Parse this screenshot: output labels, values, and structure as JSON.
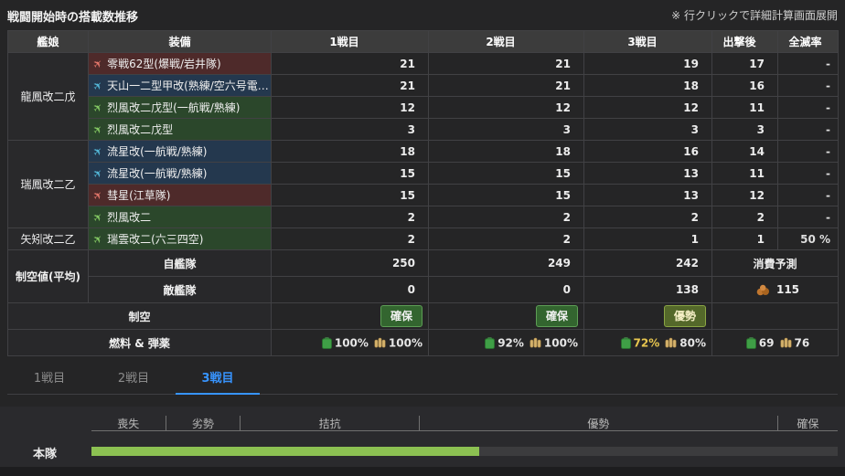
{
  "header": {
    "title": "戦闘開始時の搭載数推移",
    "note": "※ 行クリックで詳細計算画面展開"
  },
  "table": {
    "headers": {
      "ship": "艦娘",
      "equipment": "装備",
      "battle1": "1戦目",
      "battle2": "2戦目",
      "battle3": "3戦目",
      "after_sortie": "出撃後",
      "annihilation_rate": "全滅率"
    },
    "ships": [
      {
        "name": "龍鳳改二戊"
      },
      {
        "name": "瑞鳳改二乙"
      },
      {
        "name": "矢矧改二乙"
      }
    ],
    "rows": [
      {
        "equipment": "零戦62型(爆戦/岩井隊)",
        "type": "bomber",
        "b1": "21",
        "b2": "21",
        "b3": "19",
        "after": "17",
        "rate": "-"
      },
      {
        "equipment": "天山一二型甲改(熟練/空六号電…",
        "type": "attacker",
        "b1": "21",
        "b2": "21",
        "b3": "18",
        "after": "16",
        "rate": "-"
      },
      {
        "equipment": "烈風改二戊型(一航戦/熟練)",
        "type": "fighter",
        "b1": "12",
        "b2": "12",
        "b3": "12",
        "after": "11",
        "rate": "-"
      },
      {
        "equipment": "烈風改二戊型",
        "type": "fighter",
        "b1": "3",
        "b2": "3",
        "b3": "3",
        "after": "3",
        "rate": "-"
      },
      {
        "equipment": "流星改(一航戦/熟練)",
        "type": "attacker",
        "b1": "18",
        "b2": "18",
        "b3": "16",
        "after": "14",
        "rate": "-"
      },
      {
        "equipment": "流星改(一航戦/熟練)",
        "type": "attacker",
        "b1": "15",
        "b2": "15",
        "b3": "13",
        "after": "11",
        "rate": "-"
      },
      {
        "equipment": "彗星(江草隊)",
        "type": "bomber",
        "b1": "15",
        "b2": "15",
        "b3": "13",
        "after": "12",
        "rate": "-"
      },
      {
        "equipment": "烈風改二",
        "type": "fighter",
        "b1": "2",
        "b2": "2",
        "b3": "2",
        "after": "2",
        "rate": "-"
      },
      {
        "equipment": "瑞雲改二(六三四空)",
        "type": "fighter",
        "b1": "2",
        "b2": "2",
        "b3": "1",
        "after": "1",
        "rate": "50 %"
      }
    ],
    "summary": {
      "air_power_label": "制空値(平均)",
      "own_fleet": {
        "label": "自艦隊",
        "b1": "250",
        "b2": "249",
        "b3": "242",
        "note": "消費予測"
      },
      "enemy_fleet": {
        "label": "敵艦隊",
        "b1": "0",
        "b2": "0",
        "b3": "138",
        "bauxite": "115"
      },
      "air_state": {
        "label": "制空",
        "b1": "確保",
        "b2": "確保",
        "b3": "優勢"
      },
      "supply": {
        "label": "燃料 & 弾薬",
        "b1": {
          "fuel": "100%",
          "ammo": "100%"
        },
        "b2": {
          "fuel": "92%",
          "ammo": "100%"
        },
        "b3": {
          "fuel": "72%",
          "ammo": "80%"
        },
        "after": {
          "fuel": "69",
          "ammo": "76"
        }
      }
    }
  },
  "tabs": [
    {
      "label": "1戦目",
      "active": false
    },
    {
      "label": "2戦目",
      "active": false
    },
    {
      "label": "3戦目",
      "active": true
    }
  ],
  "gauge": {
    "fleet_label": "本隊",
    "labels": [
      "喪失",
      "劣勢",
      "拮抗",
      "優勢",
      "確保"
    ],
    "fill_percent": 52,
    "fill_color": "#8cc152"
  },
  "colors": {
    "accent_blue": "#3794ff",
    "bomber_row": "#4e2a2a",
    "attacker_row": "#24384e",
    "fighter_row": "#2b472b",
    "secure_badge": "#33652f",
    "superior_badge": "#54682a",
    "warning_text": "#e8c64f"
  }
}
